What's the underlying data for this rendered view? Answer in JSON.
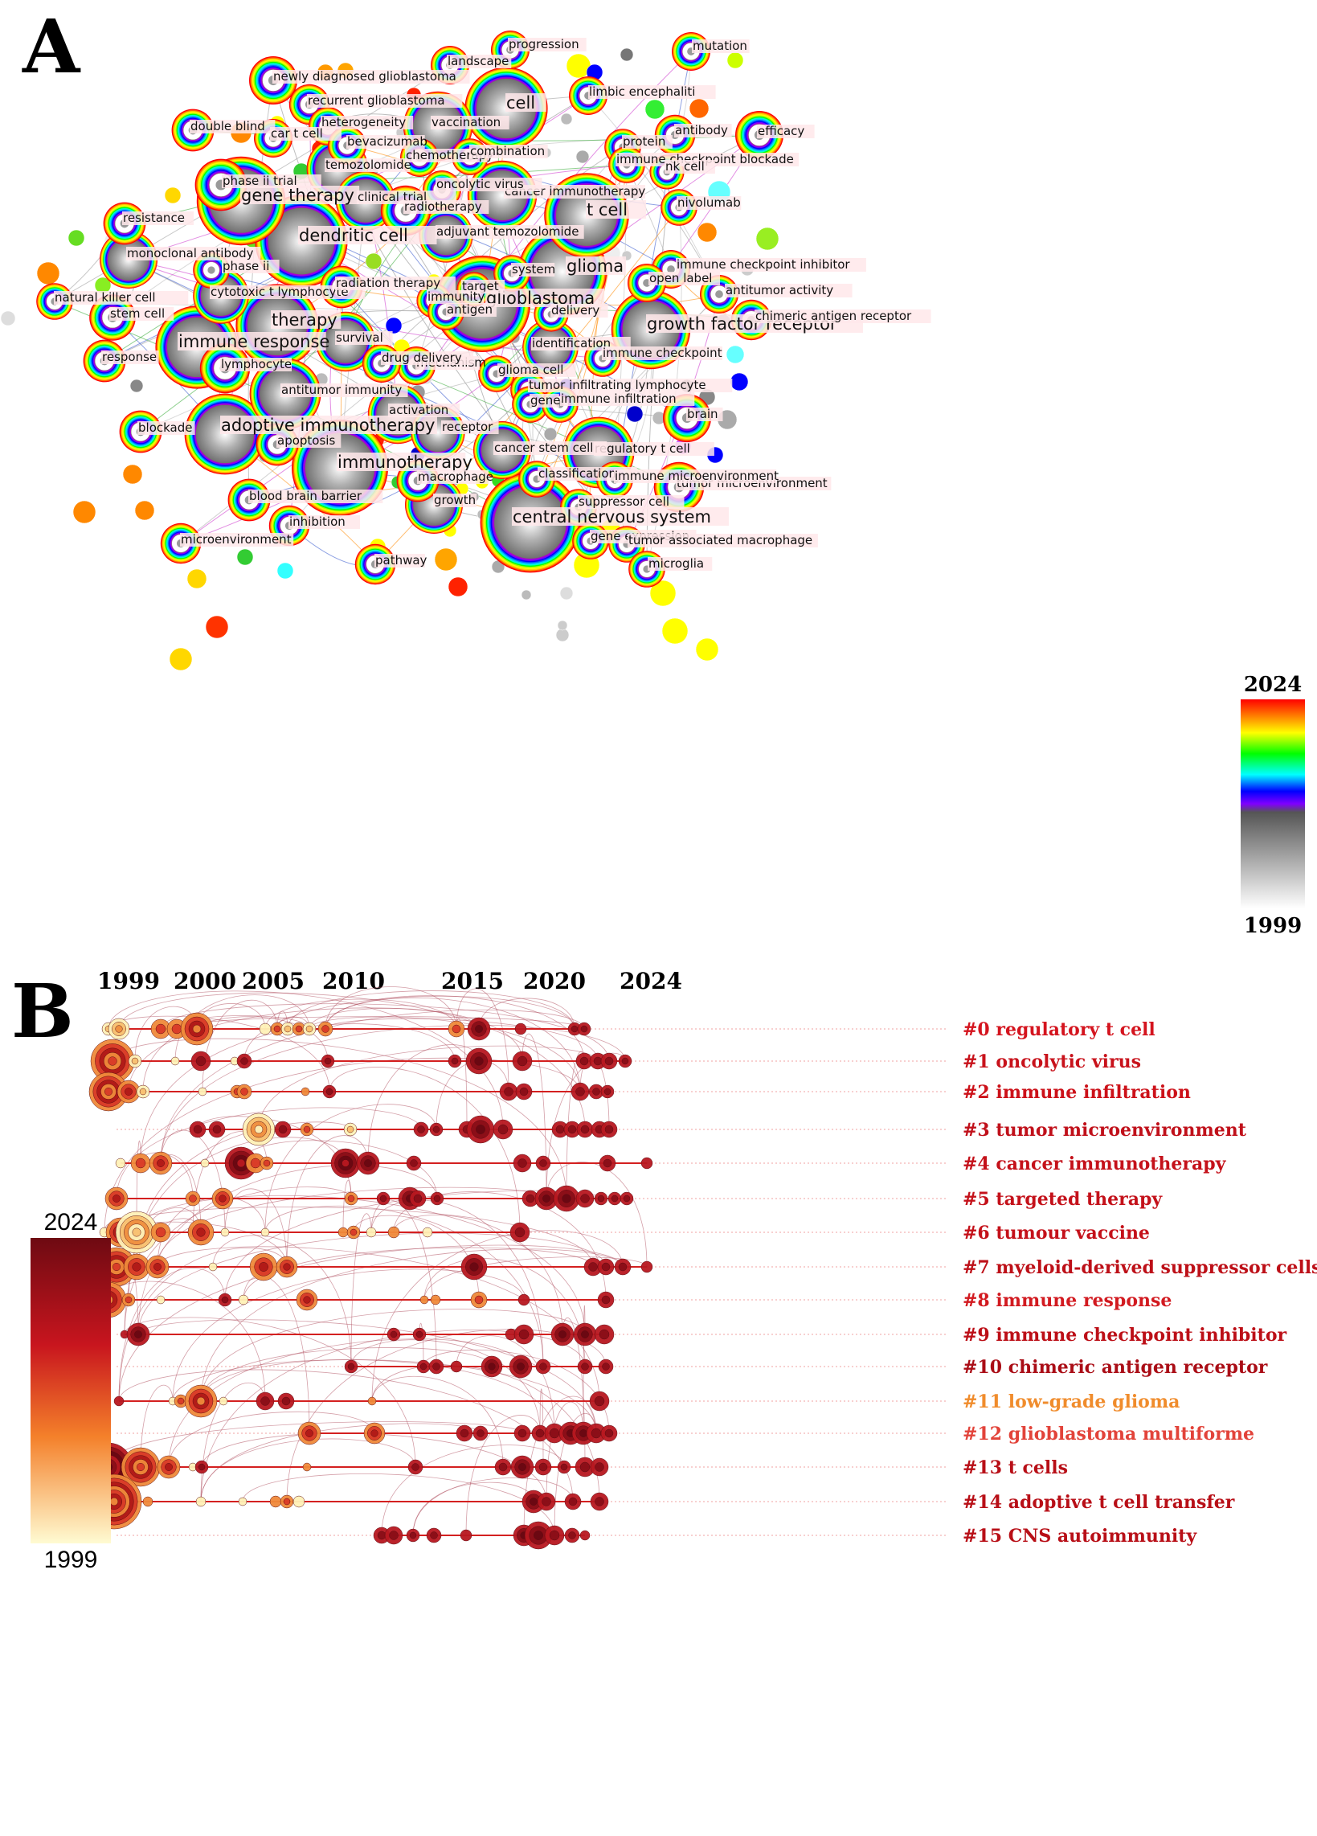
{
  "panel_a": {
    "letter": "A",
    "legend": {
      "top": "2024",
      "bottom": "1999"
    },
    "keywords": [
      {
        "label": "glioblastoma",
        "size": 5,
        "big": true
      },
      {
        "label": "glioma",
        "size": 4.6,
        "big": true
      },
      {
        "label": "immunotherapy",
        "size": 5,
        "big": true
      },
      {
        "label": "central nervous system",
        "size": 5.2,
        "big": true
      },
      {
        "label": "dendritic cell",
        "size": 4.8,
        "big": true
      },
      {
        "label": "t cell",
        "size": 4.4,
        "big": true
      },
      {
        "label": "cell",
        "size": 4.3,
        "big": true
      },
      {
        "label": "gene therapy",
        "size": 4.6,
        "big": true
      },
      {
        "label": "therapy",
        "size": 4.3,
        "big": true
      },
      {
        "label": "immune response",
        "size": 4.3,
        "big": true
      },
      {
        "label": "adoptive immunotherapy",
        "size": 4.2,
        "big": true
      },
      {
        "label": "growth factor receptor",
        "size": 4.1,
        "big": true
      },
      {
        "label": "antitumor immunity",
        "size": 3.7,
        "big": false
      },
      {
        "label": "vaccination",
        "size": 3.6,
        "big": false
      },
      {
        "label": "cancer immunotherapy",
        "size": 3.6,
        "big": false
      },
      {
        "label": "regulatory t cell",
        "size": 3.7,
        "big": false
      },
      {
        "label": "temozolomide",
        "size": 3.2,
        "big": false
      },
      {
        "label": "clinical trial",
        "size": 3.1,
        "big": false
      },
      {
        "label": "survival",
        "size": 3.1,
        "big": false
      },
      {
        "label": "activation",
        "size": 3.1,
        "big": false
      },
      {
        "label": "monoclonal antibody",
        "size": 3.0,
        "big": false
      },
      {
        "label": "cancer stem cell",
        "size": 3.0,
        "big": false
      },
      {
        "label": "growth",
        "size": 3.0,
        "big": false
      },
      {
        "label": "identification",
        "size": 2.9,
        "big": false
      },
      {
        "label": "cytotoxic t lymphocyte",
        "size": 2.9,
        "big": false
      },
      {
        "label": "receptor",
        "size": 2.8,
        "big": false
      },
      {
        "label": "adjuvant temozolomide",
        "size": 2.8,
        "big": false
      },
      {
        "label": "newly diagnosed glioblastoma",
        "size": 2.5,
        "big": false
      },
      {
        "label": "phase ii trial",
        "size": 2.7,
        "big": false
      },
      {
        "label": "lymphocyte",
        "size": 2.6,
        "big": false
      },
      {
        "label": "radiotherapy",
        "size": 2.6,
        "big": false
      },
      {
        "label": "tumor microenvironment",
        "size": 2.6,
        "big": false
      },
      {
        "label": "brain",
        "size": 2.5,
        "big": false
      },
      {
        "label": "efficacy",
        "size": 2.5,
        "big": false
      },
      {
        "label": "stem cell",
        "size": 2.4,
        "big": false
      },
      {
        "label": "blockade",
        "size": 2.2,
        "big": false
      },
      {
        "label": "radiation therapy",
        "size": 2.2,
        "big": false
      },
      {
        "label": "response",
        "size": 2.2,
        "big": false
      },
      {
        "label": "resistance",
        "size": 2.2,
        "big": false
      },
      {
        "label": "double blind",
        "size": 2.2,
        "big": false
      },
      {
        "label": "apoptosis",
        "size": 2.2,
        "big": false
      },
      {
        "label": "blood brain barrier",
        "size": 2.2,
        "big": false
      },
      {
        "label": "microenvironment",
        "size": 2.1,
        "big": false
      },
      {
        "label": "inhibition",
        "size": 2.1,
        "big": false
      },
      {
        "label": "pathway",
        "size": 2.1,
        "big": false
      },
      {
        "label": "mechanism",
        "size": 2.0,
        "big": false
      },
      {
        "label": "drug delivery",
        "size": 2.0,
        "big": false
      },
      {
        "label": "macrophage",
        "size": 2.2,
        "big": false
      },
      {
        "label": "recurrent glioblastoma",
        "size": 2.1,
        "big": false
      },
      {
        "label": "heterogeneity",
        "size": 2.0,
        "big": false
      },
      {
        "label": "car t cell",
        "size": 2.0,
        "big": false
      },
      {
        "label": "bevacizumab",
        "size": 2.0,
        "big": false
      },
      {
        "label": "chemotherapy",
        "size": 2.0,
        "big": false
      },
      {
        "label": "combination",
        "size": 1.9,
        "big": false
      },
      {
        "label": "oncolytic virus",
        "size": 2.0,
        "big": false
      },
      {
        "label": "landscape",
        "size": 2.0,
        "big": false
      },
      {
        "label": "progression",
        "size": 2.0,
        "big": false
      },
      {
        "label": "mutation",
        "size": 2.0,
        "big": false
      },
      {
        "label": "limbic encephaliti",
        "size": 2.0,
        "big": false
      },
      {
        "label": "antibody",
        "size": 2.1,
        "big": false
      },
      {
        "label": "protein",
        "size": 1.9,
        "big": false
      },
      {
        "label": "immune checkpoint blockade",
        "size": 1.9,
        "big": false
      },
      {
        "label": "nk cell",
        "size": 1.8,
        "big": false
      },
      {
        "label": "nivolumab",
        "size": 1.9,
        "big": false
      },
      {
        "label": "immune checkpoint inhibitor",
        "size": 2.0,
        "big": false
      },
      {
        "label": "open label",
        "size": 2.0,
        "big": false
      },
      {
        "label": "antitumor activity",
        "size": 2.0,
        "big": false
      },
      {
        "label": "chimeric antigen receptor",
        "size": 2.1,
        "big": false
      },
      {
        "label": "immune checkpoint",
        "size": 1.9,
        "big": false
      },
      {
        "label": "system",
        "size": 1.9,
        "big": false
      },
      {
        "label": "target",
        "size": 1.8,
        "big": false
      },
      {
        "label": "immunity",
        "size": 1.8,
        "big": false
      },
      {
        "label": "antigen",
        "size": 1.9,
        "big": false
      },
      {
        "label": "delivery",
        "size": 1.8,
        "big": false
      },
      {
        "label": "glioma cell",
        "size": 1.9,
        "big": false
      },
      {
        "label": "tumor infiltrating lymphocyte",
        "size": 1.9,
        "big": false
      },
      {
        "label": "gene",
        "size": 1.9,
        "big": false
      },
      {
        "label": "immune infiltration",
        "size": 1.9,
        "big": false
      },
      {
        "label": "classification",
        "size": 1.9,
        "big": false
      },
      {
        "label": "immune microenvironment",
        "size": 1.9,
        "big": false
      },
      {
        "label": "suppressor cell",
        "size": 1.9,
        "big": false
      },
      {
        "label": "gene expression",
        "size": 1.9,
        "big": false
      },
      {
        "label": "tumor associated macrophage",
        "size": 1.9,
        "big": false
      },
      {
        "label": "microglia",
        "size": 1.9,
        "big": false
      },
      {
        "label": "natural killer cell",
        "size": 1.9,
        "big": false
      },
      {
        "label": "phase ii",
        "size": 1.9,
        "big": false
      }
    ]
  },
  "panel_b": {
    "letter": "B",
    "years": [
      "1999",
      "2000",
      "2005",
      "2010",
      "2015",
      "2020",
      "2024"
    ],
    "legend": {
      "top": "2024",
      "bottom": "1999"
    },
    "clusters": [
      {
        "label": "#0 regulatory t cell",
        "color": "#d4141e"
      },
      {
        "label": "#1 oncolytic virus",
        "color": "#c8121b"
      },
      {
        "label": "#2 immune infiltration",
        "color": "#cc1119"
      },
      {
        "label": "#3 tumor microenvironment",
        "color": "#c0101a"
      },
      {
        "label": "#4 cancer immunotherapy",
        "color": "#c4111a"
      },
      {
        "label": "#5 targeted therapy",
        "color": "#c4111a"
      },
      {
        "label": "#6 tumour vaccine",
        "color": "#c4111a"
      },
      {
        "label": "#7 myeloid-derived suppressor cells",
        "color": "#bd1018"
      },
      {
        "label": "#8 immune response",
        "color": "#d21a20"
      },
      {
        "label": "#9 immune checkpoint inhibitor",
        "color": "#bc0f17"
      },
      {
        "label": "#10 chimeric antigen receptor",
        "color": "#aa0d16"
      },
      {
        "label": "#11 low-grade glioma",
        "color": "#f08c2c"
      },
      {
        "label": "#12 glioblastoma multiforme",
        "color": "#e2433a"
      },
      {
        "label": "#13 t cells",
        "color": "#b80f17"
      },
      {
        "label": "#14 adoptive t cell transfer",
        "color": "#b80f17"
      },
      {
        "label": "#15 CNS autoimmunity",
        "color": "#b80f17"
      }
    ]
  }
}
